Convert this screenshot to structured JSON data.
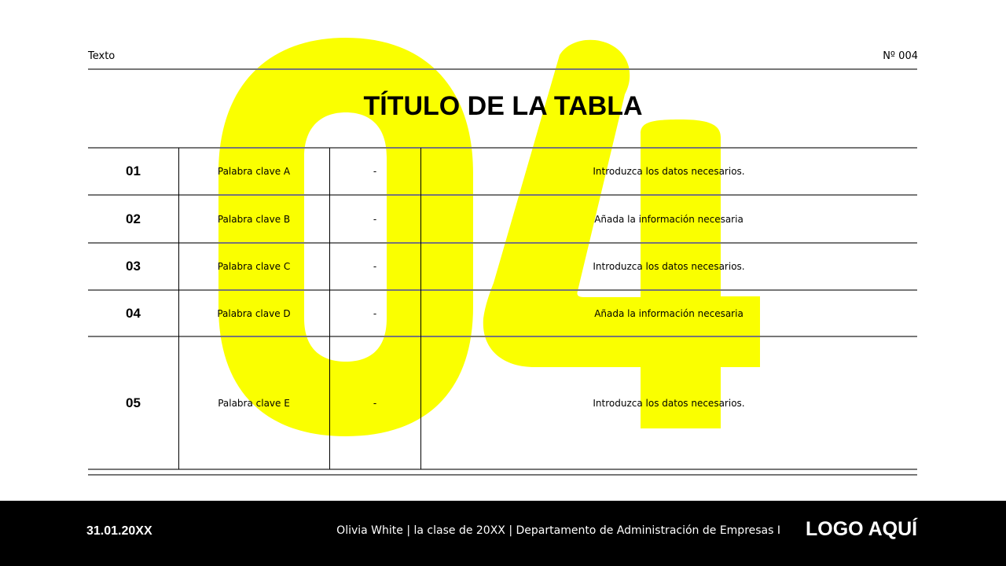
{
  "header": {
    "left_text": "Texto",
    "page_number": "Nº 004"
  },
  "watermark": {
    "text": "04",
    "color": "#FAFF00"
  },
  "title": "TÍTULO DE LA TABLA",
  "table": {
    "rows": [
      {
        "num": "01",
        "keyword": "Palabra clave A",
        "dash": "-",
        "info": "Introduzca los datos necesarios."
      },
      {
        "num": "02",
        "keyword": "Palabra clave B",
        "dash": "-",
        "info": "Añada la información necesaria"
      },
      {
        "num": "03",
        "keyword": "Palabra clave C",
        "dash": "-",
        "info": "Introduzca los datos necesarios."
      },
      {
        "num": "04",
        "keyword": "Palabra clave D",
        "dash": "-",
        "info": "Añada la información necesaria"
      },
      {
        "num": "05",
        "keyword": "Palabra clave E",
        "dash": "-",
        "info": "Introduzca los datos necesarios."
      }
    ]
  },
  "footer": {
    "date": "31.01.20XX",
    "credits": "Olivia White | la clase de 20XX | Departamento de Administración de Empresas I",
    "logo": "LOGO AQUÍ"
  }
}
